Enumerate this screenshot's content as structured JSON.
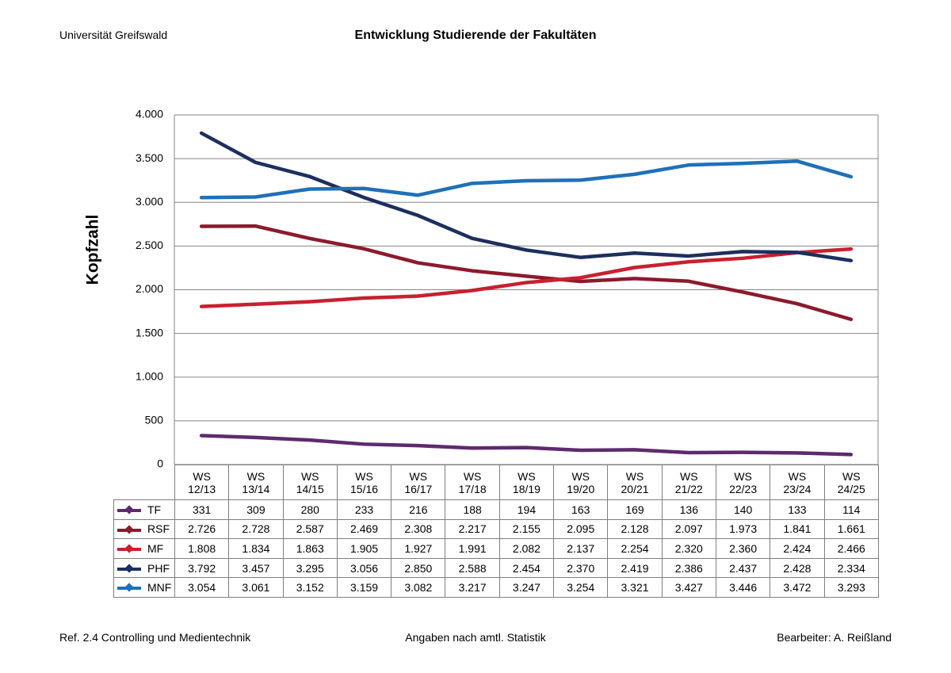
{
  "header": {
    "left": "Universität Greifswald"
  },
  "footer": {
    "left": "Ref. 2.4 Controlling und Medientechnik",
    "center": "Angaben nach amtl. Statistik",
    "right": "Bearbeiter: A. Reißland"
  },
  "chart_data": {
    "type": "line",
    "title": "Entwicklung Studierende der Fakultäten",
    "y_label": "Kopfzahl",
    "categories": [
      "WS 12/13",
      "WS 13/14",
      "WS 14/15",
      "WS 15/16",
      "WS 16/17",
      "WS 17/18",
      "WS 18/19",
      "WS 19/20",
      "WS 20/21",
      "WS 21/22",
      "WS 22/23",
      "WS 23/24",
      "WS 24/25"
    ],
    "series": [
      {
        "name": "TF",
        "color": "#5e2a6e",
        "values": [
          331,
          309,
          280,
          233,
          216,
          188,
          194,
          163,
          169,
          136,
          140,
          133,
          114
        ]
      },
      {
        "name": "RSF",
        "color": "#8c1a2e",
        "values": [
          2726,
          2728,
          2587,
          2469,
          2308,
          2217,
          2155,
          2095,
          2128,
          2097,
          1973,
          1841,
          1661
        ],
        "value_labels": [
          "2.726",
          "2.728",
          "2.587",
          "2.469",
          "2.308",
          "2.217",
          "2.155",
          "2.095",
          "2.128",
          "2.097",
          "1.973",
          "1.841",
          "1.661"
        ]
      },
      {
        "name": "MF",
        "color": "#c8202f",
        "values": [
          1808,
          1834,
          1863,
          1905,
          1927,
          1991,
          2082,
          2137,
          2254,
          2320,
          2360,
          2424,
          2466
        ],
        "value_labels": [
          "1.808",
          "1.834",
          "1.863",
          "1.905",
          "1.927",
          "1.991",
          "2.082",
          "2.137",
          "2.254",
          "2.320",
          "2.360",
          "2.424",
          "2.466"
        ]
      },
      {
        "name": "PHF",
        "color": "#1c2f5e",
        "values": [
          3792,
          3457,
          3295,
          3056,
          2850,
          2588,
          2454,
          2370,
          2419,
          2386,
          2437,
          2428,
          2334
        ],
        "value_labels": [
          "3.792",
          "3.457",
          "3.295",
          "3.056",
          "2.850",
          "2.588",
          "2.454",
          "2.370",
          "2.419",
          "2.386",
          "2.437",
          "2.428",
          "2.334"
        ]
      },
      {
        "name": "MNF",
        "color": "#1f70b8",
        "values": [
          3054,
          3061,
          3152,
          3159,
          3082,
          3217,
          3247,
          3254,
          3321,
          3427,
          3446,
          3472,
          3293
        ],
        "value_labels": [
          "3.054",
          "3.061",
          "3.152",
          "3.159",
          "3.082",
          "3.217",
          "3.247",
          "3.254",
          "3.321",
          "3.427",
          "3.446",
          "3.472",
          "3.293"
        ]
      }
    ],
    "ylim": [
      0,
      4000
    ],
    "yticks": [
      0,
      500,
      {
        "value": 1000,
        "label": "1.000"
      },
      {
        "value": 1500,
        "label": "1.500"
      },
      {
        "value": 2000,
        "label": "2.000"
      },
      {
        "value": 2500,
        "label": "2.500"
      },
      {
        "value": 3000,
        "label": "3.000"
      },
      {
        "value": 3500,
        "label": "3.500"
      },
      {
        "value": 4000,
        "label": "4.000"
      }
    ],
    "grid": true
  }
}
